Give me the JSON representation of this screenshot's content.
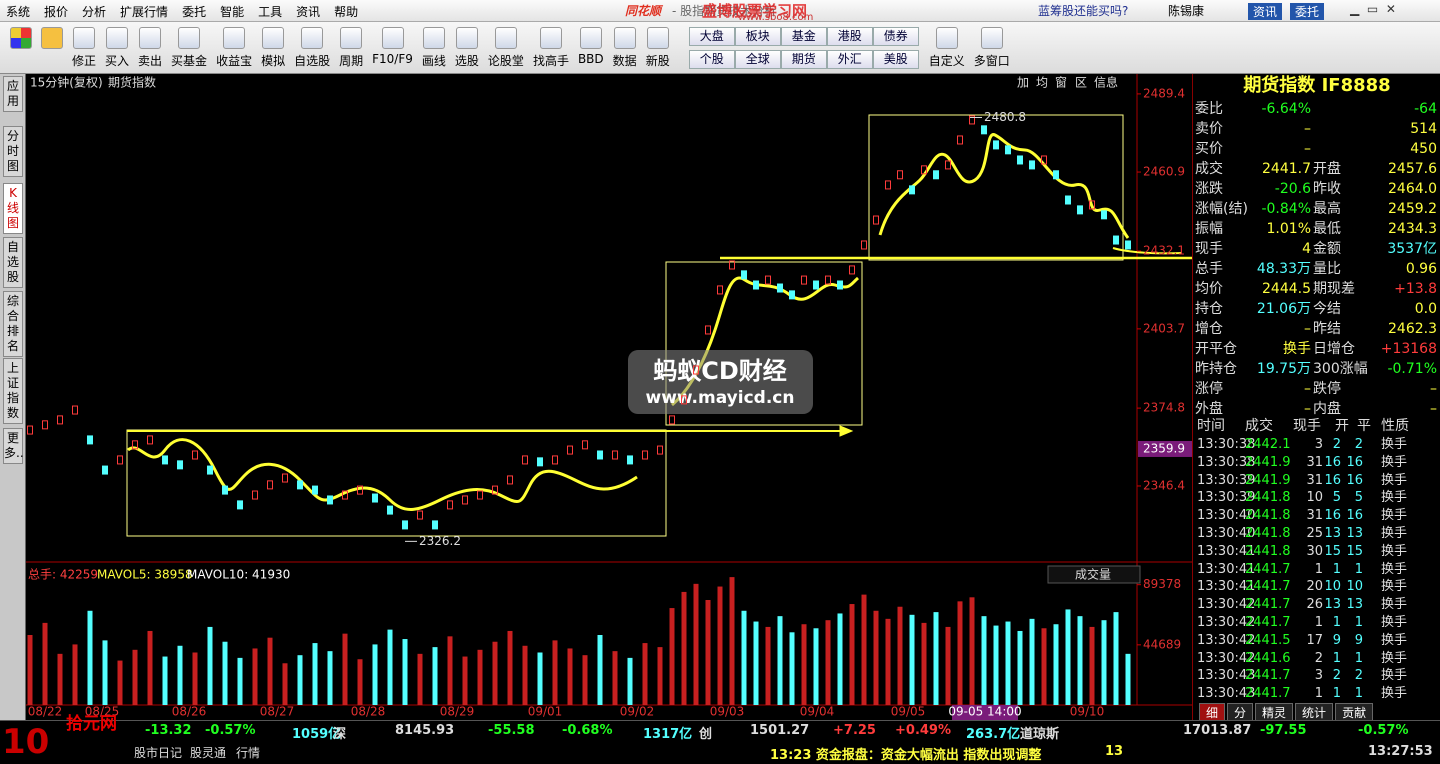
{
  "menu": [
    "系统",
    "报价",
    "分析",
    "扩展行情",
    "委托",
    "智能",
    "工具",
    "资讯",
    "帮助"
  ],
  "title_bar": {
    "logo": "同花顺",
    "app": "- 股指期货技术分析",
    "promo": "蓝筹股还能买吗?",
    "user": "陈锡康",
    "buttons": [
      "资讯",
      "委托"
    ]
  },
  "toolbar_left": [
    "修正",
    "买入",
    "卖出",
    "买基金",
    "收益宝",
    "模拟",
    "自选股",
    "周期",
    "F10/F9",
    "画线",
    "选股",
    "论股堂",
    "找高手",
    "BBD",
    "数据",
    "新股"
  ],
  "market_buttons": [
    "大盘",
    "板块",
    "基金",
    "港股",
    "债券",
    "个股",
    "全球",
    "期货",
    "外汇",
    "美股"
  ],
  "toolbar_right": [
    "自定义",
    "多窗口"
  ],
  "side_tabs": [
    "应用",
    "分时图",
    "K线图",
    "自选股",
    "综合排名",
    "上证指数",
    "更多.."
  ],
  "chart": {
    "period": "15分钟(复权)",
    "name": "期货指数",
    "tools": [
      "加",
      "均",
      "窗",
      "区",
      "信息"
    ],
    "ylim": [
      2319.4,
      2495.2
    ],
    "yticks": [
      2489.4,
      2460.9,
      2432.1,
      2403.7,
      2374.8,
      2346.4
    ],
    "last_price": 2359.9,
    "high": 2480.8,
    "low": 2326.2,
    "closes": [
      2366.8,
      2368.7,
      2370.5,
      2374.1,
      2363.2,
      2352.2,
      2355.9,
      2361.4,
      2363.2,
      2355.9,
      2354.1,
      2357.7,
      2352.2,
      2344.9,
      2339.5,
      2343.1,
      2346.8,
      2349.3,
      2346.8,
      2344.9,
      2341.3,
      2343.1,
      2344.9,
      2342.0,
      2337.6,
      2332.2,
      2335.8,
      2332.2,
      2339.5,
      2341.3,
      2343.1,
      2344.9,
      2348.6,
      2355.9,
      2355.2,
      2355.9,
      2359.5,
      2361.4,
      2357.7,
      2357.7,
      2355.9,
      2357.7,
      2359.5,
      2370.5,
      2377.8,
      2388.7,
      2403.3,
      2417.9,
      2427.0,
      2423.4,
      2419.7,
      2421.5,
      2418.6,
      2416.1,
      2421.5,
      2419.7,
      2421.5,
      2419.7,
      2425.2,
      2434.3,
      2443.4,
      2456.2,
      2459.9,
      2454.4,
      2461.7,
      2459.9,
      2463.5,
      2472.6,
      2479.9,
      2476.3,
      2470.8,
      2469.0,
      2465.3,
      2463.5,
      2465.3,
      2459.9,
      2450.7,
      2447.1,
      2448.9,
      2445.3,
      2436.1,
      2434.3
    ],
    "dates": [
      "08/22",
      "08/25",
      "08/26",
      "08/27",
      "08/28",
      "08/29",
      "09/01",
      "09/02",
      "09/03",
      "09/04",
      "09/05",
      "09/10"
    ],
    "highlight_date": "09-05 14:00",
    "volume": {
      "ylim": [
        0,
        104000
      ],
      "yticks": [
        89378,
        44689
      ],
      "total": "总手: 42259",
      "mavol5": "MAVOL5: 38958",
      "mavol10": "MAVOL10: 41930",
      "selector": "成交量",
      "values": [
        52000,
        61000,
        38000,
        45000,
        70000,
        48000,
        33000,
        41000,
        55000,
        36000,
        44000,
        39000,
        58000,
        47000,
        35000,
        42000,
        50000,
        31000,
        37000,
        46000,
        40000,
        53000,
        34000,
        45000,
        56000,
        49000,
        38000,
        43000,
        51000,
        36000,
        41000,
        47000,
        55000,
        44000,
        39000,
        48000,
        42000,
        37000,
        52000,
        40000,
        35000,
        46000,
        43000,
        72000,
        84000,
        90000,
        78000,
        88000,
        95000,
        70000,
        62000,
        58000,
        66000,
        54000,
        60000,
        57000,
        63000,
        68000,
        75000,
        82000,
        70000,
        64000,
        73000,
        67000,
        61000,
        69000,
        58000,
        77000,
        80000,
        66000,
        59000,
        62000,
        55000,
        64000,
        57000,
        60000,
        71000,
        66000,
        58000,
        63000,
        69000,
        38000
      ]
    }
  },
  "quote": {
    "title": "期货指数 IF8888",
    "rows": [
      {
        "label": "委比",
        "value": "-6.64%",
        "value2": "-64"
      },
      {
        "label": "卖价",
        "value": "–",
        "value2": "514"
      },
      {
        "label": "买价",
        "value": "–",
        "value2": "450"
      },
      {
        "label": "成交",
        "value": "2441.7",
        "label2": "开盘",
        "value2": "2457.6"
      },
      {
        "label": "涨跌",
        "value": "-20.6",
        "label2": "昨收",
        "value2": "2464.0"
      },
      {
        "label": "涨幅(结)",
        "value": "-0.84%",
        "label2": "最高",
        "value2": "2459.2"
      },
      {
        "label": "振幅",
        "value": "1.01%",
        "label2": "最低",
        "value2": "2434.3"
      },
      {
        "label": "现手",
        "value": "4",
        "label2": "金额",
        "value2": "3537亿"
      },
      {
        "label": "总手",
        "value": "48.33万",
        "label2": "量比",
        "value2": "0.96"
      },
      {
        "label": "均价",
        "value": "2444.5",
        "label2": "期现差",
        "value2": "+13.8"
      },
      {
        "label": "持仓",
        "value": "21.06万",
        "label2": "今结",
        "value2": "0.0"
      },
      {
        "label": "增仓",
        "value": "–",
        "label2": "昨结",
        "value2": "2462.3"
      },
      {
        "label": "开平仓",
        "value": "换手",
        "label2": "日增仓",
        "value2": "+13168"
      },
      {
        "label": "昨持仓",
        "value": "19.75万",
        "label2": "300涨幅",
        "value2": "-0.71%"
      },
      {
        "label": "涨停",
        "value": "–",
        "label2": "跌停",
        "value2": "–"
      },
      {
        "label": "外盘",
        "value": "–",
        "label2": "内盘",
        "value2": "–"
      }
    ]
  },
  "trades": {
    "header": [
      "时间",
      "成交",
      "现手",
      "开",
      "平",
      "性质"
    ],
    "rows": [
      [
        "13:30:38",
        "2442.1",
        "3",
        "2",
        "2",
        "换手"
      ],
      [
        "13:30:38",
        "2441.9",
        "31",
        "16",
        "16",
        "换手"
      ],
      [
        "13:30:39",
        "2441.9",
        "31",
        "16",
        "16",
        "换手"
      ],
      [
        "13:30:39",
        "2441.8",
        "10",
        "5",
        "5",
        "换手"
      ],
      [
        "13:30:40",
        "2441.8",
        "31",
        "16",
        "16",
        "换手"
      ],
      [
        "13:30:40",
        "2441.8",
        "25",
        "13",
        "13",
        "换手"
      ],
      [
        "13:30:41",
        "2441.8",
        "30",
        "15",
        "15",
        "换手"
      ],
      [
        "13:30:41",
        "2441.7",
        "1",
        "1",
        "1",
        "换手"
      ],
      [
        "13:30:41",
        "2441.7",
        "20",
        "10",
        "10",
        "换手"
      ],
      [
        "13:30:42",
        "2441.7",
        "26",
        "13",
        "13",
        "换手"
      ],
      [
        "13:30:42",
        "2441.7",
        "1",
        "1",
        "1",
        "换手"
      ],
      [
        "13:30:42",
        "2441.5",
        "17",
        "9",
        "9",
        "换手"
      ],
      [
        "13:30:42",
        "2441.6",
        "2",
        "1",
        "1",
        "换手"
      ],
      [
        "13:30:43",
        "2441.7",
        "3",
        "2",
        "2",
        "换手"
      ],
      [
        "13:30:43",
        "2441.7",
        "1",
        "1",
        "1",
        "换手"
      ]
    ],
    "tabs": [
      "细",
      "分",
      "精灵",
      "统计",
      "贡献"
    ]
  },
  "status": {
    "indices": [
      "-13.32",
      "-0.57%",
      "1059亿",
      "深",
      "8145.93",
      "-55.58",
      "-0.68%",
      "1317亿",
      "创",
      "1501.27",
      "+7.25",
      "+0.49%",
      "263.7亿",
      "道琼斯",
      "17013.87",
      "-97.55",
      "-0.57%"
    ],
    "news": "13:23 资金报盘：资金大幅流出 指数出现调整",
    "news_count": "13",
    "clock": "13:27:53",
    "tabs": [
      "股市日记",
      "股灵通",
      "行情"
    ]
  },
  "watermarks": [
    "盛博股票学习网",
    "www.sbo8.com",
    "蚂蚁CD财经",
    "www.mayicd.cn",
    "10",
    "拾元网"
  ]
}
